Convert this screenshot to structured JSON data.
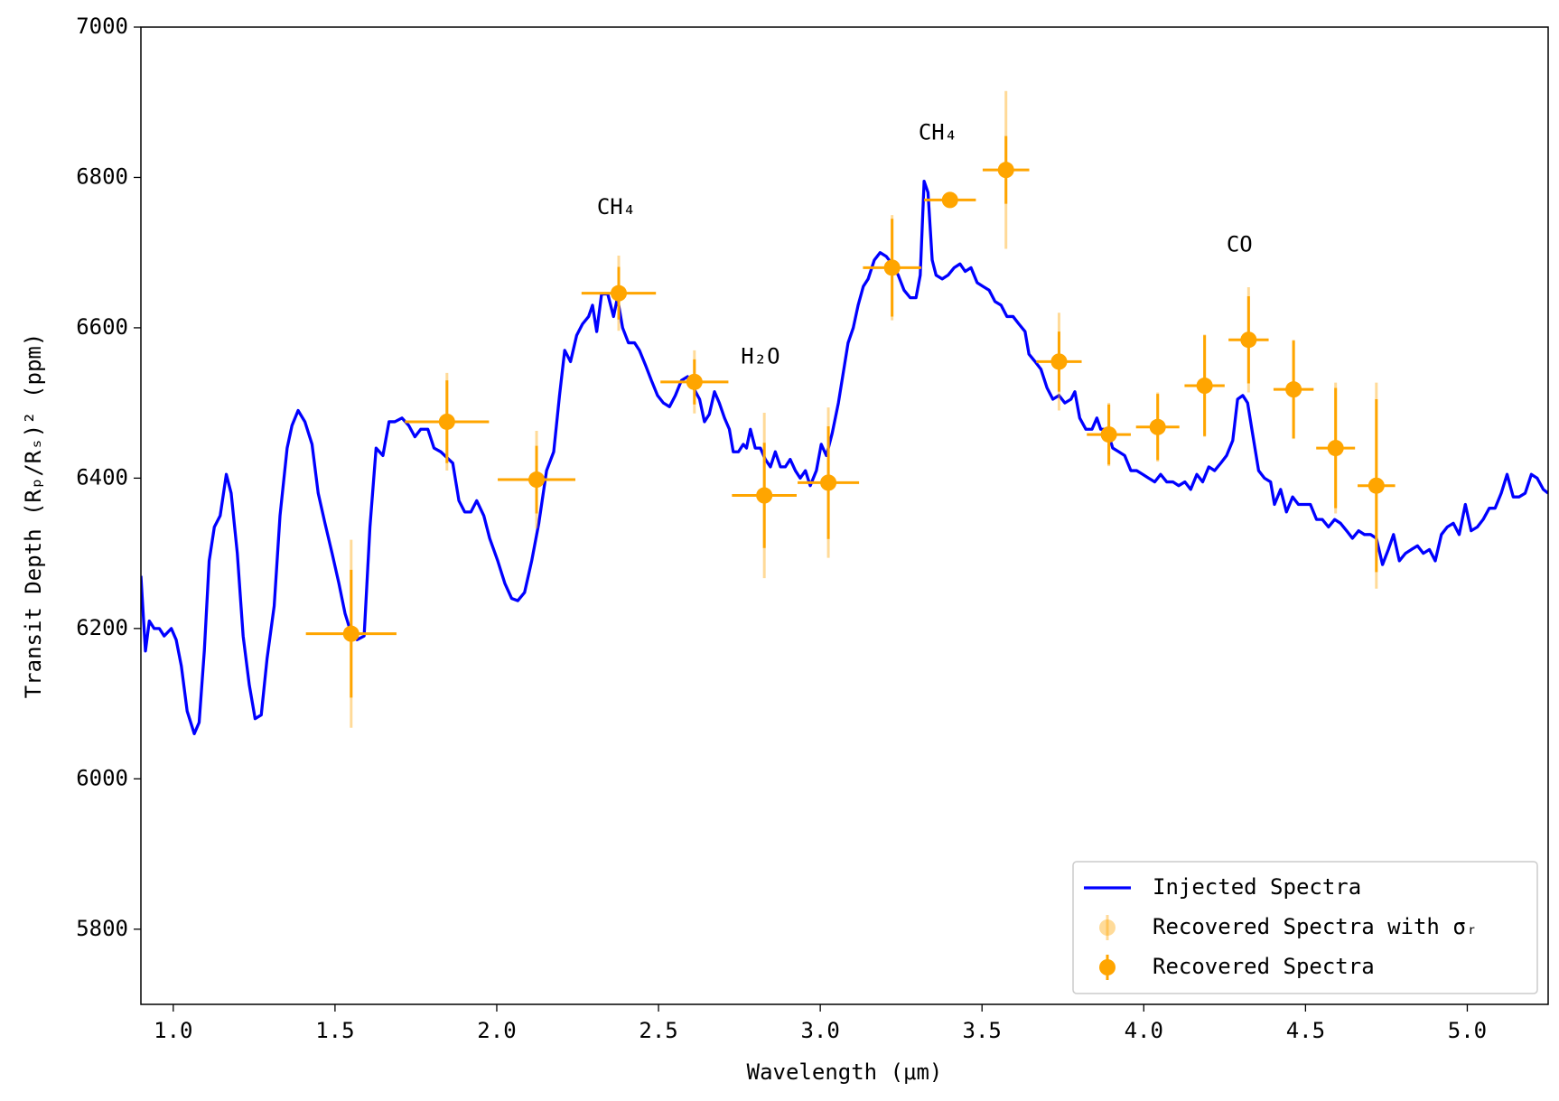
{
  "chart_data": {
    "type": "line",
    "xlabel": "Wavelength (μm)",
    "ylabel": "Transit Depth (Rₚ/Rₛ)² (ppm)",
    "xlim": [
      0.9,
      5.25
    ],
    "ylim": [
      5700,
      7000
    ],
    "xticks": [
      {
        "value": 1,
        "label": "1.0"
      },
      {
        "value": 1.5,
        "label": "1.5"
      },
      {
        "value": 2,
        "label": "2.0"
      },
      {
        "value": 2.5,
        "label": "2.5"
      },
      {
        "value": 3,
        "label": "3.0"
      },
      {
        "value": 3.5,
        "label": "3.5"
      },
      {
        "value": 4,
        "label": "4.0"
      },
      {
        "value": 4.5,
        "label": "4.5"
      },
      {
        "value": 5,
        "label": "5.0"
      }
    ],
    "yticks": [
      5800,
      6000,
      6200,
      6400,
      6600,
      6800,
      7000
    ],
    "legend": "lower right",
    "annotations": [
      {
        "text": "CH₄",
        "x": 2.37,
        "y": 6760
      },
      {
        "text": "H₂O",
        "x": 2.815,
        "y": 6561
      },
      {
        "text": "CH₄",
        "x": 3.364,
        "y": 6859
      },
      {
        "text": "CO",
        "x": 4.296,
        "y": 6710
      }
    ],
    "series": [
      {
        "name": "Injected Spectra",
        "type": "line",
        "color": "#0000ff",
        "x": [
          0.9,
          0.914,
          0.926,
          0.941,
          0.957,
          0.972,
          0.994,
          1.009,
          1.025,
          1.043,
          1.065,
          1.08,
          1.096,
          1.111,
          1.127,
          1.145,
          1.164,
          1.179,
          1.198,
          1.216,
          1.235,
          1.253,
          1.272,
          1.29,
          1.312,
          1.33,
          1.352,
          1.367,
          1.386,
          1.407,
          1.429,
          1.448,
          1.469,
          1.491,
          1.512,
          1.531,
          1.549,
          1.568,
          1.59,
          1.608,
          1.627,
          1.648,
          1.667,
          1.685,
          1.707,
          1.728,
          1.747,
          1.765,
          1.787,
          1.806,
          1.827,
          1.864,
          1.883,
          1.901,
          1.92,
          1.938,
          1.96,
          1.978,
          2.003,
          2.025,
          2.046,
          2.065,
          2.086,
          2.108,
          2.13,
          2.154,
          2.176,
          2.194,
          2.21,
          2.228,
          2.247,
          2.265,
          2.284,
          2.296,
          2.309,
          2.324,
          2.343,
          2.361,
          2.373,
          2.389,
          2.407,
          2.426,
          2.441,
          2.46,
          2.478,
          2.497,
          2.515,
          2.534,
          2.552,
          2.571,
          2.59,
          2.608,
          2.627,
          2.642,
          2.657,
          2.673,
          2.688,
          2.704,
          2.719,
          2.731,
          2.747,
          2.762,
          2.772,
          2.784,
          2.799,
          2.815,
          2.83,
          2.846,
          2.861,
          2.877,
          2.892,
          2.907,
          2.923,
          2.938,
          2.954,
          2.969,
          2.988,
          3.003,
          3.019,
          3.037,
          3.056,
          3.071,
          3.086,
          3.102,
          3.117,
          3.133,
          3.148,
          3.167,
          3.185,
          3.204,
          3.222,
          3.241,
          3.259,
          3.278,
          3.296,
          3.309,
          3.321,
          3.333,
          3.346,
          3.358,
          3.377,
          3.395,
          3.414,
          3.432,
          3.448,
          3.466,
          3.485,
          3.503,
          3.522,
          3.54,
          3.559,
          3.577,
          3.596,
          3.614,
          3.633,
          3.645,
          3.664,
          3.682,
          3.701,
          3.719,
          3.738,
          3.756,
          3.775,
          3.787,
          3.802,
          3.821,
          3.84,
          3.855,
          3.867,
          3.886,
          3.904,
          3.923,
          3.941,
          3.96,
          3.978,
          3.997,
          4.015,
          4.034,
          4.052,
          4.071,
          4.09,
          4.108,
          4.127,
          4.145,
          4.164,
          4.182,
          4.201,
          4.219,
          4.238,
          4.256,
          4.275,
          4.29,
          4.306,
          4.321,
          4.336,
          4.355,
          4.373,
          4.392,
          4.404,
          4.423,
          4.441,
          4.46,
          4.478,
          4.494,
          4.515,
          4.534,
          4.552,
          4.571,
          4.59,
          4.608,
          4.627,
          4.645,
          4.664,
          4.682,
          4.701,
          4.719,
          4.738,
          4.756,
          4.772,
          4.79,
          4.809,
          4.827,
          4.846,
          4.864,
          4.883,
          4.901,
          4.92,
          4.938,
          4.957,
          4.975,
          4.994,
          5.012,
          5.031,
          5.049,
          5.068,
          5.086,
          5.105,
          5.123,
          5.142,
          5.16,
          5.179,
          5.198,
          5.216,
          5.235,
          5.25
        ],
        "values": [
          6270,
          6170,
          6210,
          6200,
          6200,
          6190,
          6200,
          6185,
          6150,
          6090,
          6060,
          6075,
          6170,
          6290,
          6335,
          6350,
          6405,
          6380,
          6300,
          6190,
          6125,
          6080,
          6085,
          6160,
          6230,
          6350,
          6440,
          6470,
          6490,
          6475,
          6445,
          6380,
          6340,
          6300,
          6260,
          6220,
          6195,
          6185,
          6190,
          6335,
          6440,
          6430,
          6475,
          6475,
          6480,
          6470,
          6455,
          6465,
          6465,
          6440,
          6435,
          6420,
          6370,
          6355,
          6355,
          6370,
          6350,
          6320,
          6290,
          6260,
          6240,
          6237,
          6248,
          6290,
          6340,
          6410,
          6435,
          6510,
          6570,
          6555,
          6590,
          6605,
          6615,
          6630,
          6595,
          6645,
          6645,
          6615,
          6640,
          6600,
          6580,
          6580,
          6570,
          6550,
          6530,
          6510,
          6500,
          6495,
          6510,
          6530,
          6535,
          6520,
          6505,
          6475,
          6485,
          6515,
          6500,
          6480,
          6465,
          6435,
          6435,
          6445,
          6440,
          6465,
          6440,
          6440,
          6425,
          6415,
          6435,
          6415,
          6415,
          6425,
          6410,
          6400,
          6410,
          6390,
          6410,
          6445,
          6430,
          6460,
          6500,
          6540,
          6580,
          6600,
          6630,
          6655,
          6665,
          6690,
          6700,
          6695,
          6685,
          6670,
          6650,
          6640,
          6640,
          6670,
          6795,
          6780,
          6690,
          6670,
          6665,
          6670,
          6680,
          6685,
          6675,
          6680,
          6660,
          6655,
          6650,
          6635,
          6630,
          6615,
          6615,
          6605,
          6595,
          6565,
          6555,
          6545,
          6520,
          6505,
          6510,
          6500,
          6505,
          6515,
          6480,
          6465,
          6465,
          6480,
          6465,
          6465,
          6440,
          6435,
          6430,
          6410,
          6410,
          6405,
          6400,
          6395,
          6405,
          6395,
          6395,
          6390,
          6395,
          6385,
          6405,
          6395,
          6415,
          6410,
          6420,
          6430,
          6450,
          6505,
          6510,
          6500,
          6460,
          6410,
          6400,
          6395,
          6365,
          6385,
          6355,
          6375,
          6365,
          6365,
          6365,
          6345,
          6345,
          6335,
          6345,
          6340,
          6330,
          6320,
          6330,
          6325,
          6325,
          6320,
          6285,
          6305,
          6325,
          6290,
          6300,
          6305,
          6310,
          6300,
          6305,
          6290,
          6325,
          6335,
          6340,
          6325,
          6365,
          6330,
          6335,
          6345,
          6360,
          6360,
          6380,
          6405,
          6375,
          6375,
          6380,
          6405,
          6400,
          6385,
          6380
        ]
      },
      {
        "name": "Recovered Spectra with σᵣ",
        "type": "errorbar",
        "color": "#ffa500",
        "alpha": 0.4,
        "x": [
          1.55,
          1.846,
          2.123,
          2.377,
          2.611,
          2.827,
          3.025,
          3.222,
          3.401,
          3.574,
          3.738,
          3.892,
          4.043,
          4.188,
          4.324,
          4.463,
          4.593,
          4.719
        ],
        "values": [
          6193,
          6475,
          6398,
          6646,
          6528,
          6377,
          6394,
          6680,
          6770,
          6810,
          6555,
          6458,
          6468,
          6523,
          6584,
          6518,
          6440,
          6390
        ],
        "yerr": [
          125,
          65,
          65,
          50,
          42,
          110,
          100,
          70,
          10,
          105,
          65,
          42,
          46,
          68,
          70,
          66,
          87,
          137
        ]
      },
      {
        "name": "Recovered Spectra",
        "type": "errorbar",
        "color": "#ffa500",
        "alpha": 1,
        "x": [
          1.55,
          1.846,
          2.123,
          2.377,
          2.611,
          2.827,
          3.025,
          3.222,
          3.401,
          3.574,
          3.738,
          3.892,
          4.043,
          4.188,
          4.324,
          4.463,
          4.593,
          4.719
        ],
        "values": [
          6193,
          6475,
          6398,
          6646,
          6528,
          6377,
          6394,
          6680,
          6770,
          6810,
          6555,
          6458,
          6468,
          6523,
          6584,
          6518,
          6440,
          6390
        ],
        "xerr": [
          0.14,
          0.13,
          0.12,
          0.115,
          0.105,
          0.1,
          0.095,
          0.09,
          0.08,
          0.072,
          0.07,
          0.068,
          0.067,
          0.062,
          0.062,
          0.062,
          0.06,
          0.058
        ],
        "yerr": [
          85,
          55,
          45,
          35,
          30,
          70,
          75,
          65,
          8,
          45,
          40,
          40,
          44,
          67,
          58,
          65,
          80,
          115
        ]
      }
    ]
  }
}
